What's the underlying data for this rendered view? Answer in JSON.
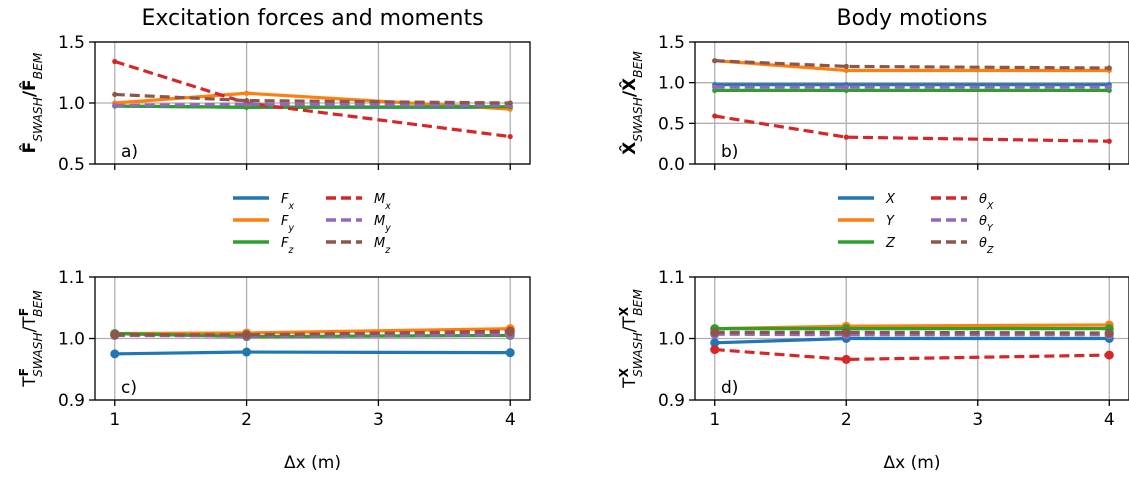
{
  "colors": {
    "blue": "#1f77b4",
    "orange": "#ff7f0e",
    "green": "#2ca02c",
    "red": "#d62728",
    "purple": "#9467bd",
    "brown": "#8c564b"
  },
  "shared_xlabel": "Δx (m)",
  "chart_data": [
    {
      "type": "line",
      "panel_label": "a)",
      "title": "Excitation forces and moments",
      "ylabel": "F̂SWASH/F̂BEM",
      "ylabel_parts": {
        "base": "F̂",
        "sub1": "SWASH",
        "mid": "/F̂",
        "sub2": "BEM"
      },
      "x": [
        1,
        2,
        4
      ],
      "xlim": [
        0.85,
        4.15
      ],
      "ylim": [
        0.5,
        1.5
      ],
      "yticks": [
        "0.5",
        "1.0",
        "1.5"
      ],
      "xticks": [],
      "grid": true,
      "markers": false,
      "series": [
        {
          "name": "F",
          "sub": "x",
          "color": "blue",
          "dash": false,
          "values": [
            0.975,
            0.965,
            0.965
          ]
        },
        {
          "name": "F",
          "sub": "y",
          "color": "orange",
          "dash": false,
          "values": [
            1.0,
            1.08,
            0.95
          ]
        },
        {
          "name": "F",
          "sub": "z",
          "color": "green",
          "dash": false,
          "values": [
            0.975,
            0.965,
            0.97
          ]
        },
        {
          "name": "M",
          "sub": "x",
          "color": "red",
          "dash": true,
          "values": [
            1.34,
            1.0,
            0.725
          ]
        },
        {
          "name": "M",
          "sub": "y",
          "color": "purple",
          "dash": true,
          "values": [
            0.98,
            0.99,
            0.98
          ]
        },
        {
          "name": "M",
          "sub": "z",
          "color": "brown",
          "dash": true,
          "values": [
            1.07,
            1.02,
            1.0
          ]
        }
      ]
    },
    {
      "type": "line",
      "panel_label": "b)",
      "title": "Body motions",
      "ylabel": "X̂SWASH/X̂BEM",
      "ylabel_parts": {
        "base": "X̂",
        "sub1": "SWASH",
        "mid": "/X̂",
        "sub2": "BEM"
      },
      "x": [
        1,
        2,
        4
      ],
      "xlim": [
        0.85,
        4.15
      ],
      "ylim": [
        0.0,
        1.5
      ],
      "yticks": [
        "0.0",
        "0.5",
        "1.0",
        "1.5"
      ],
      "xticks": [],
      "grid": true,
      "markers": false,
      "series": [
        {
          "name": "X",
          "sub": "",
          "color": "blue",
          "dash": false,
          "values": [
            0.975,
            0.975,
            0.975
          ]
        },
        {
          "name": "Y",
          "sub": "",
          "color": "orange",
          "dash": false,
          "values": [
            1.27,
            1.15,
            1.15
          ]
        },
        {
          "name": "Z",
          "sub": "",
          "color": "green",
          "dash": false,
          "values": [
            0.905,
            0.905,
            0.905
          ]
        },
        {
          "name": "θ",
          "sub": "X",
          "color": "red",
          "dash": true,
          "values": [
            0.59,
            0.33,
            0.28
          ]
        },
        {
          "name": "θ",
          "sub": "Y",
          "color": "purple",
          "dash": true,
          "values": [
            0.945,
            0.945,
            0.945
          ]
        },
        {
          "name": "θ",
          "sub": "Z",
          "color": "brown",
          "dash": true,
          "values": [
            1.27,
            1.2,
            1.18
          ]
        }
      ]
    },
    {
      "type": "line",
      "panel_label": "c)",
      "title": "",
      "ylabel": "T^F SWASH/T^F BEM",
      "ylabel_parts": {
        "base": "T",
        "sup1": "F",
        "sub1": "SWASH",
        "mid": "/T",
        "sup2": "F",
        "sub2": "BEM"
      },
      "x": [
        1,
        2,
        4
      ],
      "xlim": [
        0.85,
        4.15
      ],
      "ylim": [
        0.9,
        1.1
      ],
      "yticks": [
        "0.9",
        "1.0",
        "1.1"
      ],
      "xticks": [
        "1",
        "2",
        "3",
        "4"
      ],
      "grid": true,
      "markers": true,
      "series": [
        {
          "color": "blue",
          "dash": false,
          "values": [
            0.975,
            0.978,
            0.977
          ]
        },
        {
          "color": "orange",
          "dash": false,
          "values": [
            1.008,
            1.009,
            1.016
          ]
        },
        {
          "color": "green",
          "dash": false,
          "values": [
            1.008,
            1.003,
            1.005
          ]
        },
        {
          "color": "red",
          "dash": true,
          "values": [
            1.006,
            1.005,
            1.012
          ]
        },
        {
          "color": "purple",
          "dash": true,
          "values": [
            1.005,
            1.004,
            1.006
          ]
        },
        {
          "color": "brown",
          "dash": true,
          "values": [
            1.006,
            1.006,
            1.011
          ]
        }
      ]
    },
    {
      "type": "line",
      "panel_label": "d)",
      "title": "",
      "ylabel": "T^X SWASH/T^X BEM",
      "ylabel_parts": {
        "base": "T",
        "sup1": "X",
        "sub1": "SWASH",
        "mid": "/T",
        "sup2": "X",
        "sub2": "BEM"
      },
      "x": [
        1,
        2,
        4
      ],
      "xlim": [
        0.85,
        4.15
      ],
      "ylim": [
        0.9,
        1.1
      ],
      "yticks": [
        "0.9",
        "1.0",
        "1.1"
      ],
      "xticks": [
        "1",
        "2",
        "3",
        "4"
      ],
      "grid": true,
      "markers": true,
      "series": [
        {
          "color": "blue",
          "dash": false,
          "values": [
            0.993,
            1.0,
            1.0
          ]
        },
        {
          "color": "orange",
          "dash": false,
          "values": [
            1.016,
            1.02,
            1.022
          ]
        },
        {
          "color": "green",
          "dash": false,
          "values": [
            1.016,
            1.016,
            1.016
          ]
        },
        {
          "color": "red",
          "dash": true,
          "values": [
            0.982,
            0.966,
            0.973
          ]
        },
        {
          "color": "purple",
          "dash": true,
          "values": [
            1.007,
            1.006,
            1.006
          ]
        },
        {
          "color": "brown",
          "dash": true,
          "values": [
            1.01,
            1.01,
            1.009
          ]
        }
      ]
    }
  ]
}
